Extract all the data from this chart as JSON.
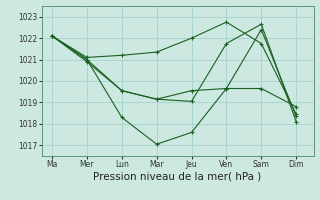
{
  "background_color": "#cce8e0",
  "grid_color": "#9ecec8",
  "line_color": "#1a6020",
  "marker_color": "#1a6020",
  "xlabel": "Pression niveau de la mer( hPa )",
  "xlabel_fontsize": 7.5,
  "ylim": [
    1016.5,
    1023.5
  ],
  "yticks": [
    1017,
    1018,
    1019,
    1020,
    1021,
    1022,
    1023
  ],
  "xtick_labels": [
    "Ma",
    "Mer",
    "Lun",
    "Mar",
    "Jeu",
    "Ven",
    "Sam",
    "Dim"
  ],
  "xtick_positions": [
    0,
    1,
    2,
    3,
    4,
    5,
    6,
    7
  ],
  "xlim": [
    -0.3,
    7.5
  ],
  "series": [
    {
      "x": [
        0,
        1,
        2,
        3,
        4,
        5,
        6,
        7
      ],
      "y": [
        1022.1,
        1021.1,
        1021.2,
        1021.35,
        1022.0,
        1022.75,
        1021.75,
        1018.45
      ]
    },
    {
      "x": [
        0,
        1,
        2,
        3,
        4,
        5,
        6,
        7
      ],
      "y": [
        1022.1,
        1020.9,
        1019.55,
        1019.15,
        1019.05,
        1021.75,
        1022.65,
        1018.1
      ]
    },
    {
      "x": [
        0,
        1,
        2,
        3,
        4,
        5,
        6,
        7
      ],
      "y": [
        1022.1,
        1021.0,
        1018.3,
        1017.05,
        1017.6,
        1019.65,
        1022.4,
        1018.35
      ]
    },
    {
      "x": [
        0,
        1,
        2,
        3,
        4,
        5,
        6,
        7
      ],
      "y": [
        1022.1,
        1021.0,
        1019.55,
        1019.15,
        1019.55,
        1019.65,
        1019.65,
        1018.8
      ]
    }
  ]
}
